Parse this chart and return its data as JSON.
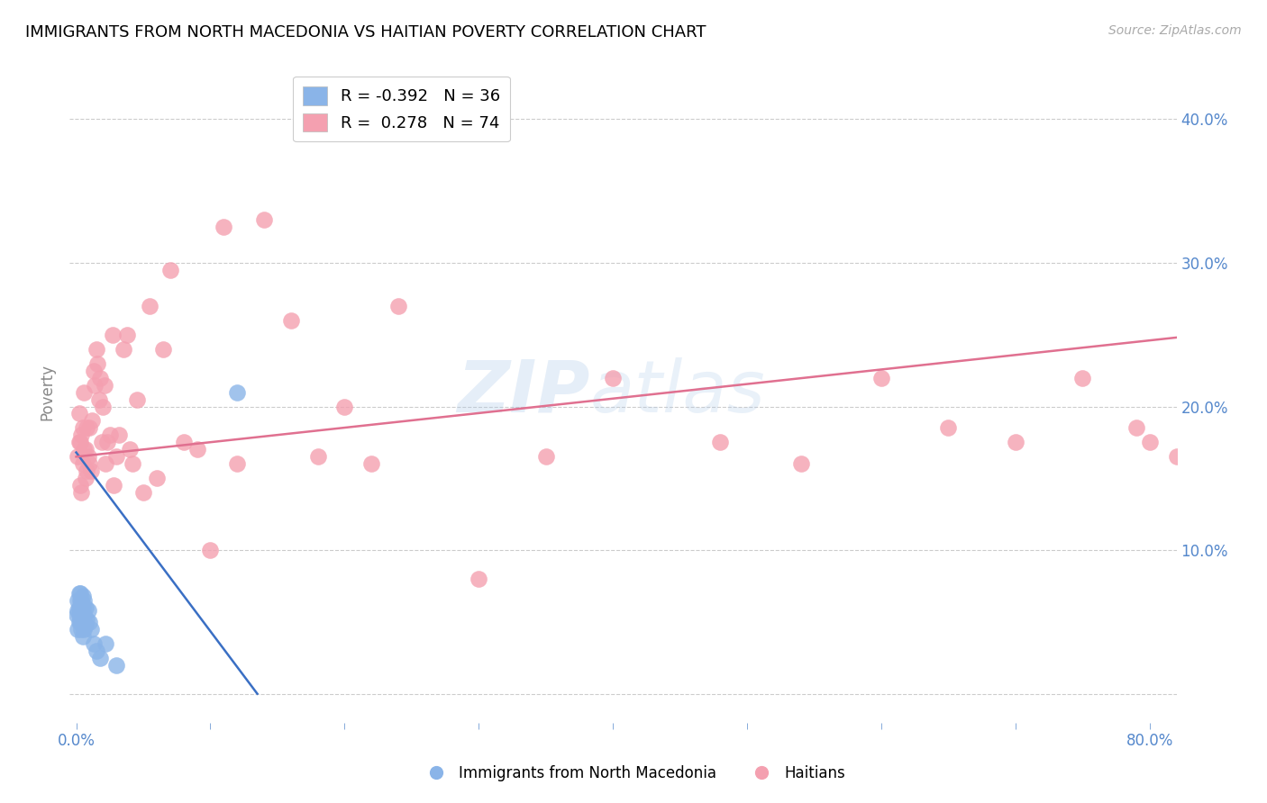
{
  "title": "IMMIGRANTS FROM NORTH MACEDONIA VS HAITIAN POVERTY CORRELATION CHART",
  "source": "Source: ZipAtlas.com",
  "ylabel": "Poverty",
  "xlim": [
    -0.005,
    0.82
  ],
  "ylim": [
    -0.02,
    0.44
  ],
  "blue_color": "#8ab4e8",
  "pink_color": "#f4a0b0",
  "blue_line_color": "#3a6fc4",
  "pink_line_color": "#e07090",
  "blue_R": -0.392,
  "blue_N": 36,
  "pink_R": 0.278,
  "pink_N": 74,
  "legend_label_blue": "Immigrants from North Macedonia",
  "legend_label_pink": "Haitians",
  "blue_scatter_x": [
    0.0005,
    0.001,
    0.001,
    0.001,
    0.002,
    0.002,
    0.002,
    0.002,
    0.003,
    0.003,
    0.003,
    0.003,
    0.003,
    0.004,
    0.004,
    0.004,
    0.004,
    0.005,
    0.005,
    0.005,
    0.005,
    0.006,
    0.006,
    0.006,
    0.007,
    0.007,
    0.008,
    0.009,
    0.01,
    0.011,
    0.013,
    0.015,
    0.018,
    0.022,
    0.03,
    0.12
  ],
  "blue_scatter_y": [
    0.055,
    0.045,
    0.058,
    0.065,
    0.05,
    0.055,
    0.06,
    0.07,
    0.05,
    0.055,
    0.06,
    0.065,
    0.07,
    0.045,
    0.052,
    0.058,
    0.065,
    0.04,
    0.05,
    0.06,
    0.068,
    0.045,
    0.055,
    0.065,
    0.048,
    0.06,
    0.052,
    0.058,
    0.05,
    0.045,
    0.035,
    0.03,
    0.025,
    0.035,
    0.02,
    0.21
  ],
  "pink_scatter_x": [
    0.001,
    0.002,
    0.002,
    0.003,
    0.003,
    0.004,
    0.004,
    0.005,
    0.005,
    0.006,
    0.006,
    0.007,
    0.007,
    0.008,
    0.008,
    0.009,
    0.01,
    0.01,
    0.011,
    0.012,
    0.013,
    0.014,
    0.015,
    0.016,
    0.017,
    0.018,
    0.019,
    0.02,
    0.021,
    0.022,
    0.023,
    0.025,
    0.027,
    0.028,
    0.03,
    0.032,
    0.035,
    0.038,
    0.04,
    0.042,
    0.045,
    0.05,
    0.055,
    0.06,
    0.065,
    0.07,
    0.08,
    0.09,
    0.1,
    0.11,
    0.12,
    0.14,
    0.16,
    0.18,
    0.2,
    0.22,
    0.24,
    0.3,
    0.35,
    0.4,
    0.48,
    0.54,
    0.6,
    0.65,
    0.7,
    0.75,
    0.79,
    0.8,
    0.82,
    0.83,
    0.84,
    0.85,
    0.86,
    0.87
  ],
  "pink_scatter_y": [
    0.165,
    0.175,
    0.195,
    0.145,
    0.175,
    0.14,
    0.18,
    0.16,
    0.185,
    0.17,
    0.21,
    0.15,
    0.17,
    0.155,
    0.185,
    0.165,
    0.16,
    0.185,
    0.155,
    0.19,
    0.225,
    0.215,
    0.24,
    0.23,
    0.205,
    0.22,
    0.175,
    0.2,
    0.215,
    0.16,
    0.175,
    0.18,
    0.25,
    0.145,
    0.165,
    0.18,
    0.24,
    0.25,
    0.17,
    0.16,
    0.205,
    0.14,
    0.27,
    0.15,
    0.24,
    0.295,
    0.175,
    0.17,
    0.1,
    0.325,
    0.16,
    0.33,
    0.26,
    0.165,
    0.2,
    0.16,
    0.27,
    0.08,
    0.165,
    0.22,
    0.175,
    0.16,
    0.22,
    0.185,
    0.175,
    0.22,
    0.185,
    0.175,
    0.165,
    0.17,
    0.15,
    0.165,
    0.175,
    0.17
  ],
  "blue_line_x0": 0.0,
  "blue_line_x1": 0.135,
  "blue_line_y0": 0.168,
  "blue_line_y1": 0.0,
  "pink_line_x0": 0.0,
  "pink_line_x1": 0.82,
  "pink_line_y0": 0.165,
  "pink_line_y1": 0.248
}
